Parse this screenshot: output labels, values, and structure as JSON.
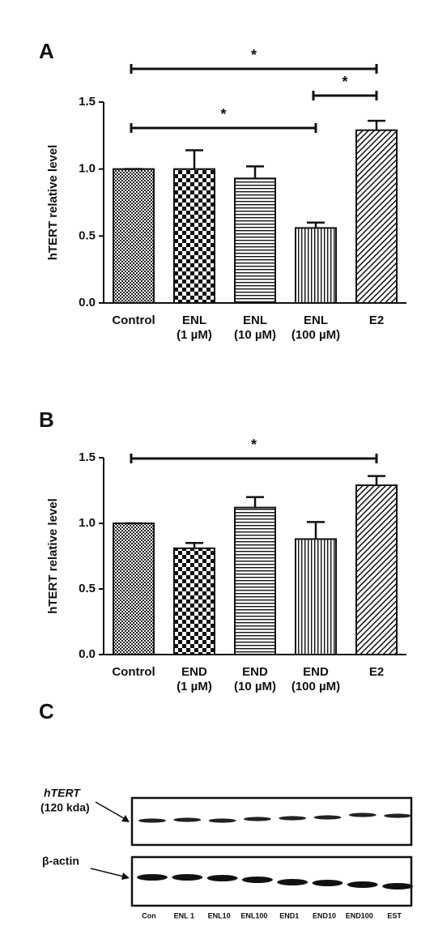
{
  "chart_data": [
    {
      "type": "bar",
      "panel": "A",
      "y_label": "hTERT relative level",
      "categories": [
        [
          "Control"
        ],
        [
          "ENL",
          "(1 µM)"
        ],
        [
          "ENL",
          "(10 µM)"
        ],
        [
          "ENL",
          "(100 µM)"
        ],
        [
          "E2"
        ]
      ],
      "values": [
        1.0,
        1.0,
        0.93,
        0.56,
        1.29
      ],
      "errors": [
        0,
        0.14,
        0.09,
        0.04,
        0.07
      ],
      "patterns": [
        "dots",
        "checker",
        "horizontal",
        "vertical",
        "diagonal"
      ],
      "ylim": [
        0,
        1.5
      ],
      "yticks": [
        {
          "value": 0,
          "label": "0.0"
        },
        {
          "value": 0.5,
          "label": "0.5"
        },
        {
          "value": 1,
          "label": "1.0"
        },
        {
          "value": 1.5,
          "label": "1.5"
        }
      ],
      "brackets": [
        {
          "from": 0,
          "to": 4,
          "label": "*"
        },
        {
          "from": 3,
          "to": 4,
          "label": "*"
        },
        {
          "from": 0,
          "to": 3,
          "label": "*"
        }
      ]
    },
    {
      "type": "bar",
      "panel": "B",
      "y_label": "hTERT relative level",
      "categories": [
        [
          "Control"
        ],
        [
          "END",
          "(1 µM)"
        ],
        [
          "END",
          "(10 µM)"
        ],
        [
          "END",
          "(100 µM)"
        ],
        [
          "E2"
        ]
      ],
      "values": [
        1.0,
        0.81,
        1.12,
        0.88,
        1.29
      ],
      "errors": [
        0,
        0.04,
        0.08,
        0.13,
        0.07
      ],
      "patterns": [
        "dots",
        "checker",
        "horizontal",
        "vertical",
        "diagonal"
      ],
      "ylim": [
        0,
        1.5
      ],
      "yticks": [
        {
          "value": 0,
          "label": "0.0"
        },
        {
          "value": 0.5,
          "label": "0.5"
        },
        {
          "value": 1,
          "label": "1.0"
        },
        {
          "value": 1.5,
          "label": "1.5"
        }
      ],
      "brackets": [
        {
          "from": 0,
          "to": 4,
          "label": "*"
        }
      ]
    }
  ],
  "blot": {
    "panel": "C",
    "rows": [
      {
        "label": "hTERT",
        "sublabel": "(120 kda)"
      },
      {
        "label": "β-actin"
      }
    ],
    "lanes": [
      "Con",
      "ENL 1",
      "ENL10",
      "ENL100",
      "END1",
      "END10",
      "END100",
      "EST"
    ]
  }
}
